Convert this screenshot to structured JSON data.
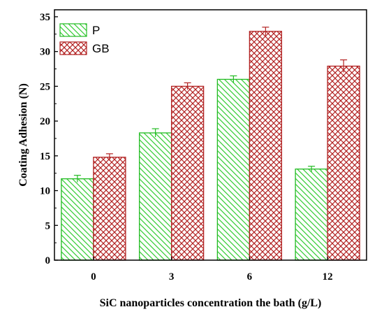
{
  "chart_data": {
    "type": "bar",
    "xlabel": "SiC nanoparticles concentration the bath (g/L)",
    "ylabel": "Coating Adhesion (N)",
    "categories": [
      "0",
      "3",
      "6",
      "12"
    ],
    "ylim": [
      0,
      36
    ],
    "yticks": [
      0,
      5,
      10,
      15,
      20,
      25,
      30,
      35
    ],
    "yticks_label": [
      "0",
      "5",
      "10",
      "15",
      "20",
      "25",
      "30",
      "35"
    ],
    "legend_position": "top-left",
    "grid": false,
    "series": [
      {
        "name": "P",
        "values": [
          11.7,
          18.3,
          26.0,
          13.1
        ],
        "errors": [
          0.5,
          0.6,
          0.5,
          0.4
        ],
        "color": "#22bb22",
        "pattern": "diagonal-hatch"
      },
      {
        "name": "GB",
        "values": [
          14.8,
          25.0,
          32.9,
          27.9
        ],
        "errors": [
          0.5,
          0.5,
          0.6,
          0.9
        ],
        "color": "#b22222",
        "pattern": "cross-hatch"
      }
    ]
  }
}
